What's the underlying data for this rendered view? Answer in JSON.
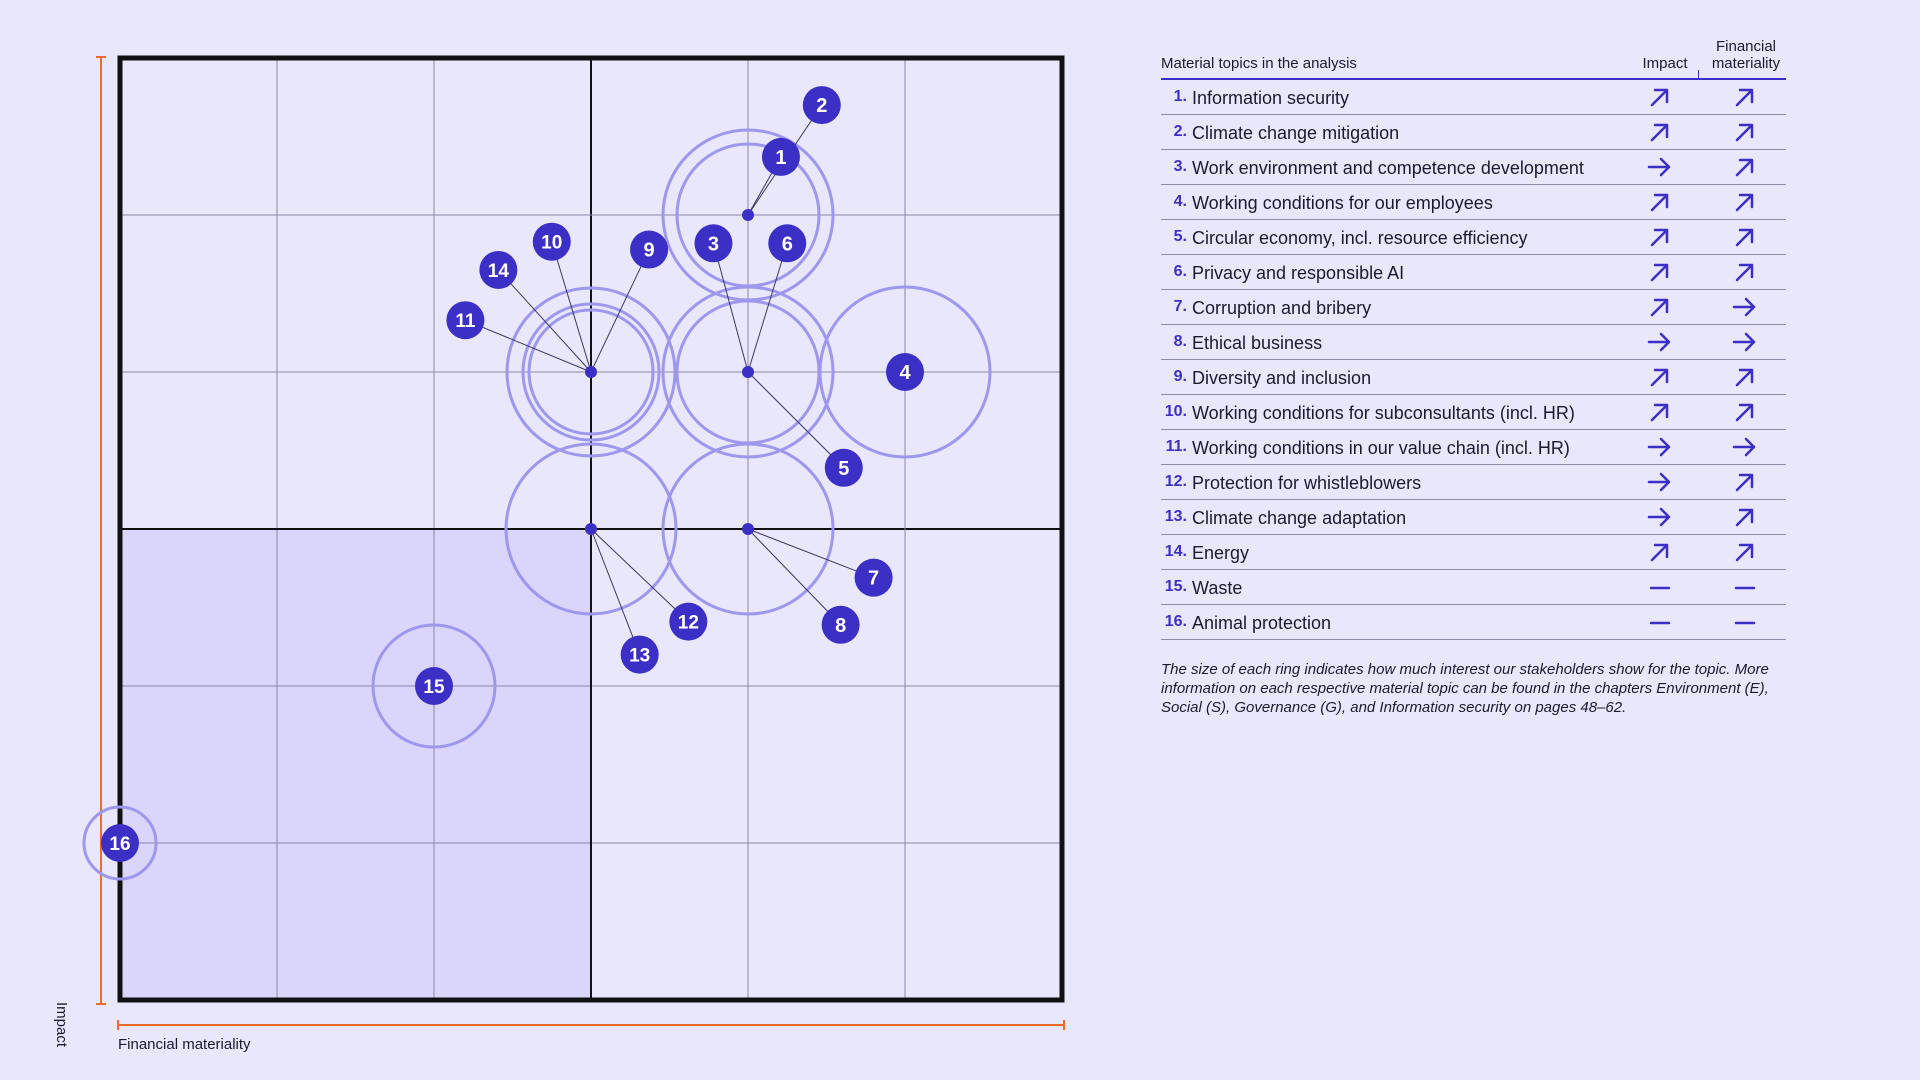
{
  "chart_data": {
    "type": "scatter",
    "xlabel": "Financial materiality",
    "ylabel": "Impact",
    "xlim": [
      0,
      6
    ],
    "ylim": [
      0,
      6
    ],
    "grid": true,
    "points": [
      {
        "id": "1",
        "x": 4.0,
        "y": 5.0,
        "anchor": [
          4,
          5
        ],
        "ring": "large-double"
      },
      {
        "id": "2",
        "x": 4.0,
        "y": 5.0,
        "anchor": [
          4,
          5
        ],
        "ring": "large-double"
      },
      {
        "id": "3",
        "x": 4.0,
        "y": 4.0,
        "anchor": [
          4,
          4
        ],
        "ring": "large-double"
      },
      {
        "id": "4",
        "x": 5.0,
        "y": 4.0,
        "anchor": [
          5,
          4
        ],
        "ring": "large"
      },
      {
        "id": "5",
        "x": 4.0,
        "y": 4.0,
        "anchor": [
          4,
          4
        ],
        "ring": "large-double"
      },
      {
        "id": "6",
        "x": 4.0,
        "y": 4.0,
        "anchor": [
          4,
          4
        ],
        "ring": "large-double"
      },
      {
        "id": "7",
        "x": 4.0,
        "y": 3.0,
        "anchor": [
          4,
          3
        ],
        "ring": "large"
      },
      {
        "id": "8",
        "x": 4.0,
        "y": 3.0,
        "anchor": [
          4,
          3
        ],
        "ring": "large"
      },
      {
        "id": "9",
        "x": 3.0,
        "y": 4.0,
        "anchor": [
          3,
          4
        ],
        "ring": "large-triple"
      },
      {
        "id": "10",
        "x": 3.0,
        "y": 4.0,
        "anchor": [
          3,
          4
        ],
        "ring": "large-triple"
      },
      {
        "id": "11",
        "x": 3.0,
        "y": 4.0,
        "anchor": [
          3,
          4
        ],
        "ring": "large-triple"
      },
      {
        "id": "12",
        "x": 3.0,
        "y": 3.0,
        "anchor": [
          3,
          3
        ],
        "ring": "large"
      },
      {
        "id": "13",
        "x": 3.0,
        "y": 3.0,
        "anchor": [
          3,
          3
        ],
        "ring": "large"
      },
      {
        "id": "14",
        "x": 3.0,
        "y": 4.0,
        "anchor": [
          3,
          4
        ],
        "ring": "large-triple"
      },
      {
        "id": "15",
        "x": 2.0,
        "y": 2.0,
        "anchor": [
          2,
          2
        ],
        "ring": "medium"
      },
      {
        "id": "16",
        "x": 0.0,
        "y": 1.0,
        "anchor": [
          0,
          1
        ],
        "ring": "small"
      }
    ],
    "label_positions": {
      "1": [
        4.21,
        5.37
      ],
      "2": [
        4.47,
        5.7
      ],
      "3": [
        3.78,
        4.82
      ],
      "6": [
        4.25,
        4.82
      ],
      "5": [
        4.61,
        3.39
      ],
      "7": [
        4.8,
        2.69
      ],
      "8": [
        4.59,
        2.39
      ],
      "9": [
        3.37,
        4.78
      ],
      "10": [
        2.75,
        4.83
      ],
      "14": [
        2.41,
        4.65
      ],
      "11": [
        2.2,
        4.33
      ],
      "12": [
        3.62,
        2.41
      ],
      "13": [
        3.31,
        2.2
      ],
      "4": [
        5.0,
        4.0
      ],
      "15": [
        2.0,
        2.0
      ],
      "16": [
        0.0,
        1.0
      ]
    },
    "shaded_quadrant": {
      "x": [
        0,
        3
      ],
      "y": [
        0,
        3
      ]
    },
    "topics": [
      {
        "num": "1.",
        "name": "Information security",
        "impact": "up",
        "financial": "up"
      },
      {
        "num": "2.",
        "name": "Climate change mitigation",
        "impact": "up",
        "financial": "up"
      },
      {
        "num": "3.",
        "name": "Work environment and competence development",
        "impact": "right",
        "financial": "up"
      },
      {
        "num": "4.",
        "name": "Working conditions for our employees",
        "impact": "up",
        "financial": "up"
      },
      {
        "num": "5.",
        "name": "Circular economy, incl. resource efficiency",
        "impact": "up",
        "financial": "up"
      },
      {
        "num": "6.",
        "name": "Privacy and responsible AI",
        "impact": "up",
        "financial": "up"
      },
      {
        "num": "7.",
        "name": "Corruption and bribery",
        "impact": "up",
        "financial": "right"
      },
      {
        "num": "8.",
        "name": "Ethical business",
        "impact": "right",
        "financial": "right"
      },
      {
        "num": "9.",
        "name": "Diversity and inclusion",
        "impact": "up",
        "financial": "up"
      },
      {
        "num": "10.",
        "name": "Working conditions for subconsultants (incl. HR)",
        "impact": "up",
        "financial": "up"
      },
      {
        "num": "11.",
        "name": "Working conditions in our value chain (incl. HR)",
        "impact": "right",
        "financial": "right"
      },
      {
        "num": "12.",
        "name": "Protection for whistleblowers",
        "impact": "right",
        "financial": "up"
      },
      {
        "num": "13.",
        "name": "Climate change adaptation",
        "impact": "right",
        "financial": "up"
      },
      {
        "num": "14.",
        "name": "Energy",
        "impact": "up",
        "financial": "up"
      },
      {
        "num": "15.",
        "name": "Waste",
        "impact": "flat",
        "financial": "flat"
      },
      {
        "num": "16.",
        "name": "Animal protection",
        "impact": "flat",
        "financial": "flat"
      }
    ]
  },
  "table": {
    "header_topic": "Material topics in the analysis",
    "header_impact": "Impact",
    "header_financial": "Financial materiality"
  },
  "footnote": "The size of each ring indicates how much interest our stakeholders show for the topic. More information on each respective material topic can be found in the chapters Environment (E), Social  (S), Governance (G), and Information security on pages 48–62.",
  "colors": {
    "background": "#e9e7fc",
    "accent": "#3c2fc5",
    "ring": "#9d97ee",
    "axis": "#f06b2b",
    "shade": "#d9d5fb"
  }
}
